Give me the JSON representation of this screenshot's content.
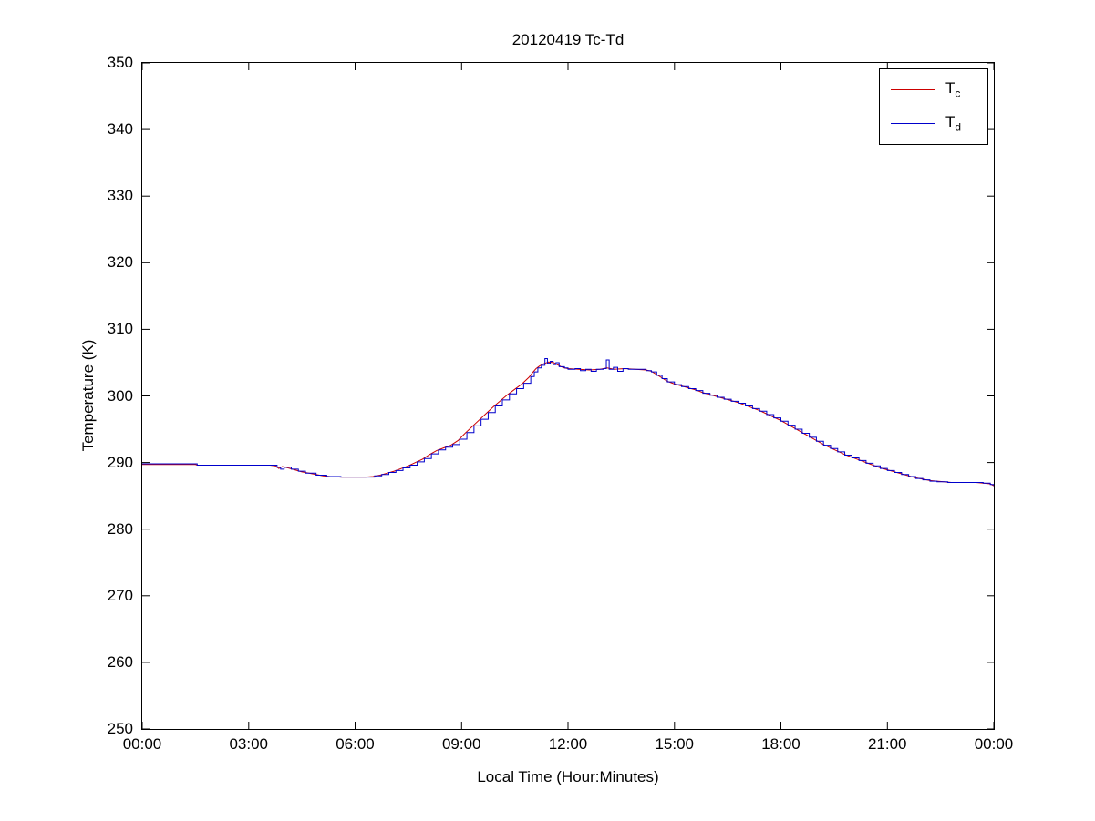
{
  "figure": {
    "title": "20120419 Tc-Td"
  },
  "axes": {
    "xlabel": "Local Time (Hour:Minutes)",
    "ylabel": "Temperature (K)"
  },
  "legend": {
    "entries": [
      {
        "base": "T",
        "sub": "c",
        "color": "#cc0000"
      },
      {
        "base": "T",
        "sub": "d",
        "color": "#0000cc"
      }
    ]
  },
  "chart_data": {
    "type": "line",
    "title": "20120419 Tc-Td",
    "xlabel": "Local Time (Hour:Minutes)",
    "ylabel": "Temperature (K)",
    "xlim": [
      0,
      24
    ],
    "ylim": [
      250,
      350
    ],
    "grid": false,
    "legend_position": "top-right",
    "xticks": [
      0,
      3,
      6,
      9,
      12,
      15,
      18,
      21,
      24
    ],
    "xtick_labels": [
      "00:00",
      "03:00",
      "06:00",
      "09:00",
      "12:00",
      "15:00",
      "18:00",
      "21:00",
      "00:00"
    ],
    "yticks": [
      250,
      260,
      270,
      280,
      290,
      300,
      310,
      320,
      330,
      340,
      350
    ],
    "series": [
      {
        "name": "Tc",
        "color": "#cc0000",
        "style": "linear",
        "points": [
          [
            0,
            289.7
          ],
          [
            1.5,
            289.7
          ],
          [
            1.55,
            289.6
          ],
          [
            3.6,
            289.6
          ],
          [
            3.75,
            289.5
          ],
          [
            3.85,
            289.1
          ],
          [
            3.95,
            289.4
          ],
          [
            4.1,
            289.2
          ],
          [
            4.3,
            288.9
          ],
          [
            4.5,
            288.6
          ],
          [
            4.7,
            288.4
          ],
          [
            4.9,
            288.2
          ],
          [
            5.1,
            288.0
          ],
          [
            5.3,
            287.9
          ],
          [
            5.6,
            287.8
          ],
          [
            6.3,
            287.8
          ],
          [
            6.5,
            287.9
          ],
          [
            6.7,
            288.1
          ],
          [
            6.9,
            288.4
          ],
          [
            7.1,
            288.7
          ],
          [
            7.3,
            289.1
          ],
          [
            7.5,
            289.5
          ],
          [
            7.7,
            290.0
          ],
          [
            7.9,
            290.5
          ],
          [
            8.1,
            291.2
          ],
          [
            8.3,
            291.8
          ],
          [
            8.5,
            292.2
          ],
          [
            8.7,
            292.6
          ],
          [
            8.9,
            293.3
          ],
          [
            9.1,
            294.4
          ],
          [
            9.3,
            295.4
          ],
          [
            9.5,
            296.4
          ],
          [
            9.7,
            297.4
          ],
          [
            9.9,
            298.4
          ],
          [
            10.1,
            299.3
          ],
          [
            10.3,
            300.2
          ],
          [
            10.5,
            301.0
          ],
          [
            10.7,
            301.8
          ],
          [
            10.9,
            302.8
          ],
          [
            11.0,
            303.5
          ],
          [
            11.1,
            304.1
          ],
          [
            11.2,
            304.5
          ],
          [
            11.3,
            304.8
          ],
          [
            11.45,
            305.1
          ],
          [
            11.6,
            305.0
          ],
          [
            11.7,
            304.7
          ],
          [
            11.8,
            304.4
          ],
          [
            11.9,
            304.2
          ],
          [
            12.0,
            304.1
          ],
          [
            12.3,
            304.0
          ],
          [
            12.6,
            303.9
          ],
          [
            12.9,
            304.0
          ],
          [
            13.1,
            304.2
          ],
          [
            13.3,
            304.0
          ],
          [
            13.6,
            304.1
          ],
          [
            13.9,
            304.0
          ],
          [
            14.2,
            303.9
          ],
          [
            14.35,
            303.7
          ],
          [
            14.5,
            303.2
          ],
          [
            14.65,
            302.7
          ],
          [
            14.8,
            302.2
          ],
          [
            15.0,
            301.8
          ],
          [
            15.2,
            301.5
          ],
          [
            15.4,
            301.2
          ],
          [
            15.6,
            300.9
          ],
          [
            15.8,
            300.5
          ],
          [
            16.0,
            300.2
          ],
          [
            16.2,
            299.9
          ],
          [
            16.4,
            299.6
          ],
          [
            16.6,
            299.3
          ],
          [
            16.8,
            299.0
          ],
          [
            17.0,
            298.6
          ],
          [
            17.2,
            298.2
          ],
          [
            17.4,
            297.8
          ],
          [
            17.6,
            297.3
          ],
          [
            17.8,
            296.8
          ],
          [
            18.0,
            296.3
          ],
          [
            18.2,
            295.7
          ],
          [
            18.4,
            295.1
          ],
          [
            18.6,
            294.5
          ],
          [
            18.8,
            293.9
          ],
          [
            19.0,
            293.3
          ],
          [
            19.2,
            292.7
          ],
          [
            19.4,
            292.2
          ],
          [
            19.6,
            291.7
          ],
          [
            19.8,
            291.2
          ],
          [
            20.0,
            290.8
          ],
          [
            20.2,
            290.4
          ],
          [
            20.4,
            290.0
          ],
          [
            20.6,
            289.6
          ],
          [
            20.8,
            289.2
          ],
          [
            21.0,
            288.9
          ],
          [
            21.2,
            288.6
          ],
          [
            21.4,
            288.3
          ],
          [
            21.6,
            288.0
          ],
          [
            21.8,
            287.7
          ],
          [
            22.0,
            287.5
          ],
          [
            22.2,
            287.3
          ],
          [
            22.4,
            287.2
          ],
          [
            22.6,
            287.1
          ],
          [
            22.8,
            287.0
          ],
          [
            23.5,
            287.0
          ],
          [
            23.7,
            286.9
          ],
          [
            23.9,
            286.8
          ],
          [
            24,
            286.5
          ]
        ]
      },
      {
        "name": "Td",
        "color": "#0000cc",
        "style": "step-after",
        "points": [
          [
            0,
            289.8
          ],
          [
            1.5,
            289.8
          ],
          [
            1.55,
            289.6
          ],
          [
            3.6,
            289.6
          ],
          [
            3.8,
            289.3
          ],
          [
            3.9,
            289.0
          ],
          [
            4.0,
            289.3
          ],
          [
            4.2,
            289.0
          ],
          [
            4.4,
            288.7
          ],
          [
            4.6,
            288.4
          ],
          [
            4.9,
            288.1
          ],
          [
            5.2,
            287.9
          ],
          [
            5.6,
            287.8
          ],
          [
            6.3,
            287.8
          ],
          [
            6.55,
            288.0
          ],
          [
            6.75,
            288.2
          ],
          [
            6.95,
            288.5
          ],
          [
            7.15,
            288.8
          ],
          [
            7.35,
            289.2
          ],
          [
            7.55,
            289.6
          ],
          [
            7.75,
            290.1
          ],
          [
            7.95,
            290.6
          ],
          [
            8.15,
            291.3
          ],
          [
            8.35,
            291.9
          ],
          [
            8.55,
            292.3
          ],
          [
            8.75,
            292.7
          ],
          [
            8.95,
            293.5
          ],
          [
            9.15,
            294.5
          ],
          [
            9.35,
            295.5
          ],
          [
            9.55,
            296.5
          ],
          [
            9.75,
            297.5
          ],
          [
            9.95,
            298.5
          ],
          [
            10.15,
            299.4
          ],
          [
            10.35,
            300.3
          ],
          [
            10.55,
            301.1
          ],
          [
            10.75,
            301.9
          ],
          [
            10.95,
            302.9
          ],
          [
            11.05,
            303.6
          ],
          [
            11.15,
            304.2
          ],
          [
            11.25,
            304.6
          ],
          [
            11.35,
            305.6
          ],
          [
            11.42,
            304.9
          ],
          [
            11.5,
            305.2
          ],
          [
            11.58,
            304.7
          ],
          [
            11.66,
            305.0
          ],
          [
            11.75,
            304.4
          ],
          [
            11.9,
            304.2
          ],
          [
            12.0,
            304.0
          ],
          [
            12.2,
            304.1
          ],
          [
            12.35,
            303.8
          ],
          [
            12.5,
            304.0
          ],
          [
            12.65,
            303.7
          ],
          [
            12.8,
            304.0
          ],
          [
            13.0,
            304.1
          ],
          [
            13.08,
            305.4
          ],
          [
            13.16,
            304.0
          ],
          [
            13.28,
            304.3
          ],
          [
            13.4,
            303.7
          ],
          [
            13.55,
            304.1
          ],
          [
            13.7,
            304.0
          ],
          [
            14.0,
            304.0
          ],
          [
            14.2,
            303.8
          ],
          [
            14.35,
            303.6
          ],
          [
            14.5,
            303.1
          ],
          [
            14.65,
            302.6
          ],
          [
            14.8,
            302.1
          ],
          [
            15.0,
            301.7
          ],
          [
            15.2,
            301.4
          ],
          [
            15.4,
            301.1
          ],
          [
            15.6,
            300.8
          ],
          [
            15.8,
            300.4
          ],
          [
            16.0,
            300.1
          ],
          [
            16.2,
            299.8
          ],
          [
            16.4,
            299.5
          ],
          [
            16.6,
            299.2
          ],
          [
            16.8,
            298.9
          ],
          [
            17.0,
            298.5
          ],
          [
            17.2,
            298.1
          ],
          [
            17.4,
            297.7
          ],
          [
            17.6,
            297.2
          ],
          [
            17.8,
            296.7
          ],
          [
            18.0,
            296.2
          ],
          [
            18.2,
            295.6
          ],
          [
            18.4,
            295.0
          ],
          [
            18.6,
            294.4
          ],
          [
            18.8,
            293.8
          ],
          [
            19.0,
            293.2
          ],
          [
            19.2,
            292.6
          ],
          [
            19.4,
            292.1
          ],
          [
            19.6,
            291.6
          ],
          [
            19.8,
            291.1
          ],
          [
            20.0,
            290.7
          ],
          [
            20.2,
            290.3
          ],
          [
            20.4,
            289.9
          ],
          [
            20.6,
            289.5
          ],
          [
            20.8,
            289.1
          ],
          [
            21.0,
            288.8
          ],
          [
            21.2,
            288.5
          ],
          [
            21.4,
            288.2
          ],
          [
            21.6,
            287.9
          ],
          [
            21.8,
            287.6
          ],
          [
            22.0,
            287.4
          ],
          [
            22.2,
            287.2
          ],
          [
            22.4,
            287.1
          ],
          [
            22.7,
            287.0
          ],
          [
            23.5,
            287.0
          ],
          [
            23.7,
            286.9
          ],
          [
            23.9,
            286.7
          ],
          [
            24,
            286.5
          ]
        ]
      }
    ]
  }
}
